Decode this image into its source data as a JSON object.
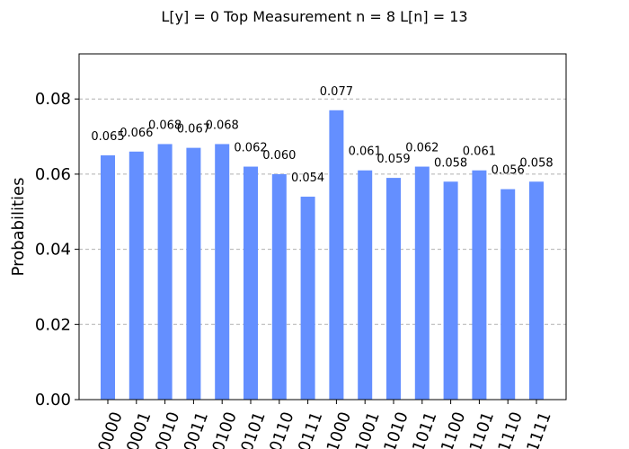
{
  "chart_data": {
    "type": "bar",
    "title": "L[y] = 0 Top Measurement n = 8 L[n] = 13",
    "xlabel": "",
    "ylabel": "Probabilities",
    "ylim": [
      0,
      0.092
    ],
    "yticks": [
      "0.00",
      "0.02",
      "0.04",
      "0.06",
      "0.08"
    ],
    "ytick_values": [
      0,
      0.02,
      0.04,
      0.06,
      0.08
    ],
    "grid": "y-dashed",
    "bar_color": "#648fff",
    "categories": [
      "0000",
      "0001",
      "0010",
      "0011",
      "0100",
      "0101",
      "0110",
      "0111",
      "1000",
      "1001",
      "1010",
      "1011",
      "1100",
      "1101",
      "1110",
      "1111"
    ],
    "values": [
      0.065,
      0.066,
      0.068,
      0.067,
      0.068,
      0.062,
      0.06,
      0.054,
      0.077,
      0.061,
      0.059,
      0.062,
      0.058,
      0.061,
      0.056,
      0.058
    ],
    "data_labels": [
      "0.065",
      "0.066",
      "0.068",
      "0.067",
      "0.068",
      "0.062",
      "0.060",
      "0.054",
      "0.077",
      "0.061",
      "0.059",
      "0.062",
      "0.058",
      "0.061",
      "0.056",
      "0.058"
    ]
  }
}
